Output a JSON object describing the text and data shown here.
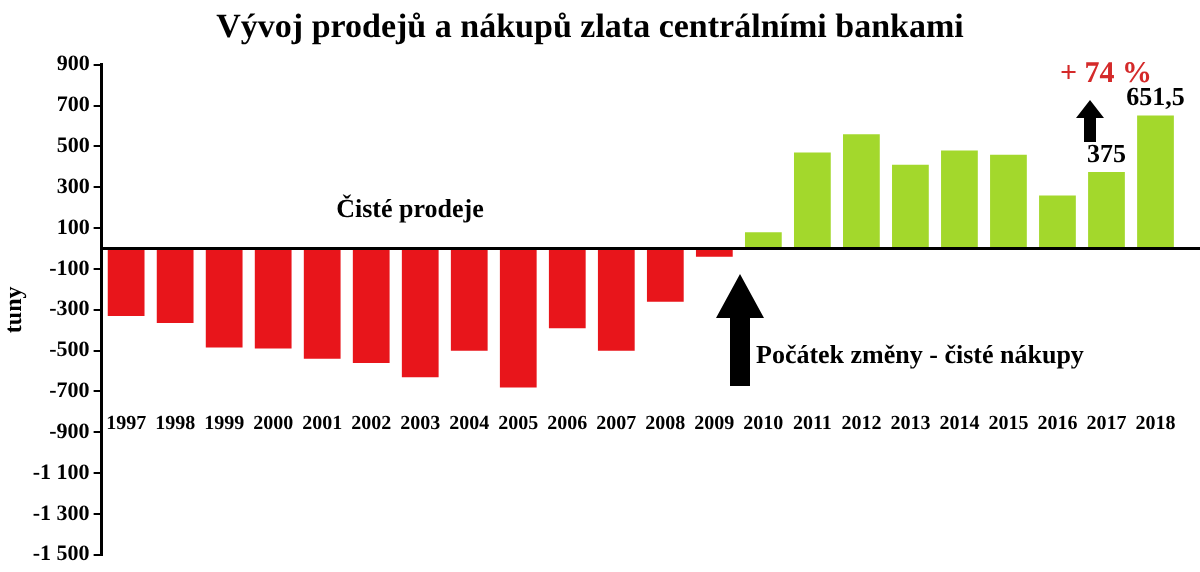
{
  "chart_data": {
    "type": "bar",
    "title": "Vývoj prodejů a nákupů zlata centrálními bankami",
    "ylabel": "tuny",
    "categories": [
      "1997",
      "1998",
      "1999",
      "2000",
      "2001",
      "2002",
      "2003",
      "2004",
      "2005",
      "2006",
      "2007",
      "2008",
      "2009",
      "2010",
      "2011",
      "2012",
      "2013",
      "2014",
      "2015",
      "2016",
      "2017",
      "2018"
    ],
    "values": [
      -330,
      -365,
      -485,
      -490,
      -540,
      -560,
      -630,
      -500,
      -680,
      -390,
      -500,
      -260,
      -40,
      80,
      470,
      560,
      410,
      480,
      460,
      260,
      375,
      651.5
    ],
    "colors": [
      "#e8151b",
      "#e8151b",
      "#e8151b",
      "#e8151b",
      "#e8151b",
      "#e8151b",
      "#e8151b",
      "#e8151b",
      "#e8151b",
      "#e8151b",
      "#e8151b",
      "#e8151b",
      "#e8151b",
      "#a3d82c",
      "#a3d82c",
      "#a3d82c",
      "#a3d82c",
      "#a3d82c",
      "#a3d82c",
      "#a3d82c",
      "#a3d82c",
      "#a3d82c"
    ],
    "value_labels": [
      null,
      null,
      null,
      null,
      null,
      null,
      null,
      null,
      null,
      null,
      null,
      null,
      null,
      null,
      null,
      null,
      null,
      null,
      null,
      null,
      "375",
      "651,5"
    ],
    "ylim": [
      -1500,
      900
    ],
    "yticks": [
      900,
      700,
      500,
      300,
      100,
      -100,
      -300,
      -500,
      -700,
      -900,
      {
        "value": -1100,
        "label": "-1 100"
      },
      {
        "value": -1300,
        "label": "-1 300"
      },
      {
        "value": -1500,
        "label": "-1 500"
      }
    ],
    "annotations": [
      "Čisté prodeje",
      "Počátek změny - čisté nákupy",
      "+ 74 %"
    ],
    "grid": false,
    "legend": false
  }
}
